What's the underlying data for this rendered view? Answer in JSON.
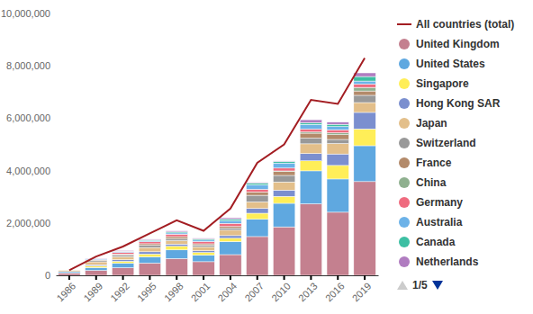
{
  "chart_data": {
    "type": "bar",
    "stacked": true,
    "grid": false,
    "legend": "right",
    "legend_page_label": "1/5",
    "categories": [
      "1986",
      "1989",
      "1992",
      "1995",
      "1998",
      "2001",
      "2004",
      "2007",
      "2010",
      "2013",
      "2016",
      "2019"
    ],
    "ylim": [
      0,
      10000000
    ],
    "yticks": [
      0,
      {
        "value": 2000000,
        "label": "2,000,000"
      },
      {
        "value": 4000000,
        "label": "4,000,000"
      },
      {
        "value": 6000000,
        "label": "6,000,000"
      },
      {
        "value": 8000000,
        "label": "8,000,000"
      },
      {
        "value": 10000000,
        "label": "10,000,000"
      }
    ],
    "series": [
      {
        "name": "All countries (total)",
        "type": "line",
        "color": "#a31d22",
        "values": [
          190000,
          720000,
          1100000,
          1600000,
          2100000,
          1700000,
          2550000,
          4300000,
          5000000,
          6700000,
          6550000,
          8300000
        ]
      },
      {
        "name": "United Kingdom",
        "type": "bar",
        "color": "#c4808f",
        "values": [
          90000,
          185000,
          290000,
          465000,
          640000,
          520000,
          790000,
          1480000,
          1850000,
          2730000,
          2410000,
          3580000
        ]
      },
      {
        "name": "United States",
        "type": "bar",
        "color": "#5fa8e0",
        "values": [
          50000,
          115000,
          170000,
          240000,
          330000,
          250000,
          500000,
          660000,
          900000,
          1260000,
          1270000,
          1370000
        ]
      },
      {
        "name": "Singapore",
        "type": "bar",
        "color": "#ffee58",
        "values": [
          null,
          55000,
          74000,
          105000,
          139000,
          101000,
          125000,
          231000,
          266000,
          383000,
          517000,
          640000
        ]
      },
      {
        "name": "Hong Kong SAR",
        "type": "bar",
        "color": "#7b8fcf",
        "values": [
          null,
          49000,
          60000,
          90000,
          79000,
          67000,
          102000,
          181000,
          238000,
          275000,
          437000,
          632000
        ]
      },
      {
        "name": "Japan",
        "type": "bar",
        "color": "#e3bf8a",
        "values": [
          48000,
          111000,
          120000,
          161000,
          136000,
          147000,
          207000,
          250000,
          312000,
          374000,
          399000,
          376000
        ]
      },
      {
        "name": "Switzerland",
        "type": "bar",
        "color": "#999999",
        "values": [
          null,
          56000,
          66000,
          87000,
          82000,
          71000,
          79000,
          254000,
          249000,
          216000,
          156000,
          276000
        ]
      },
      {
        "name": "France",
        "type": "bar",
        "color": "#b38a6a",
        "values": [
          null,
          23000,
          33000,
          58000,
          72000,
          48000,
          64000,
          127000,
          152000,
          190000,
          181000,
          167000
        ]
      },
      {
        "name": "China",
        "type": "bar",
        "color": "#8fb08f",
        "values": [
          null,
          null,
          null,
          null,
          null,
          null,
          null,
          null,
          20000,
          44000,
          73000,
          136000
        ]
      },
      {
        "name": "Germany",
        "type": "bar",
        "color": "#ef6b7f",
        "values": [
          null,
          null,
          57000,
          77000,
          94000,
          88000,
          118000,
          101000,
          109000,
          111000,
          116000,
          124000
        ]
      },
      {
        "name": "Australia",
        "type": "bar",
        "color": "#6cb2e8",
        "values": [
          null,
          29000,
          29000,
          40000,
          47000,
          54000,
          107000,
          176000,
          192000,
          182000,
          121000,
          119000
        ]
      },
      {
        "name": "Canada",
        "type": "bar",
        "color": "#3dbfa3",
        "values": [
          null,
          15000,
          22000,
          30000,
          37000,
          42000,
          54000,
          64000,
          62000,
          65000,
          86000,
          172000
        ]
      },
      {
        "name": "Netherlands",
        "type": "bar",
        "color": "#b07cc0",
        "values": [
          null,
          13000,
          26000,
          26000,
          41000,
          30000,
          52000,
          25000,
          18000,
          112000,
          85000,
          140000
        ]
      }
    ]
  }
}
